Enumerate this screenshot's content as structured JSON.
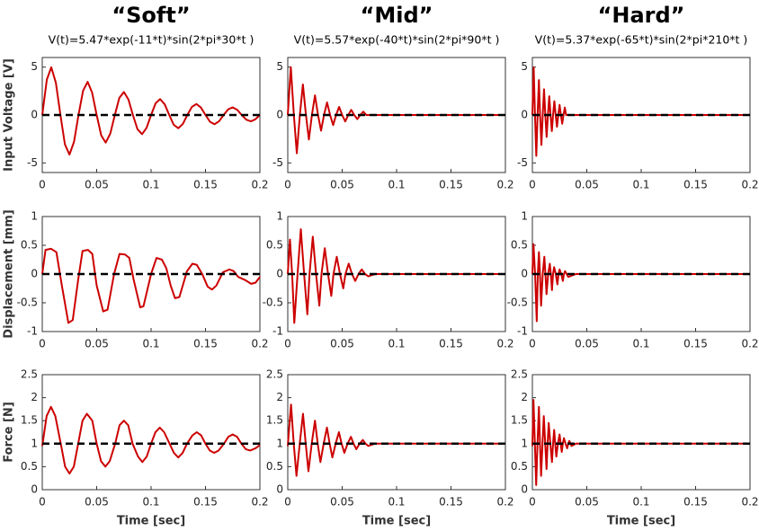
{
  "chart_data": [
    {
      "type": "line",
      "title": "“Soft”",
      "subtitle": "V(t)=5.47*exp(-11*t)*sin(2*pi*30*t )",
      "ylabel": "Input Voltage [V]",
      "x": [
        0,
        0.0042,
        0.0083,
        0.0125,
        0.0167,
        0.0208,
        0.025,
        0.0292,
        0.0333,
        0.0375,
        0.0417,
        0.0458,
        0.05,
        0.0542,
        0.0583,
        0.0625,
        0.0667,
        0.0708,
        0.075,
        0.0792,
        0.0833,
        0.0875,
        0.0917,
        0.0958,
        0.1,
        0.1042,
        0.1083,
        0.1125,
        0.1167,
        0.1208,
        0.125,
        0.1292,
        0.1333,
        0.1375,
        0.1417,
        0.1458,
        0.15,
        0.1542,
        0.1583,
        0.1625,
        0.1667,
        0.1708,
        0.175,
        0.1792,
        0.1833,
        0.1875,
        0.1917,
        0.1958,
        0.2
      ],
      "series": [
        {
          "color": "#cc0000",
          "values": [
            0,
            3.69,
            4.98,
            3.36,
            0,
            -3.06,
            -4.13,
            -2.79,
            0,
            2.54,
            3.46,
            2.34,
            0,
            -2.13,
            -2.88,
            -1.94,
            0,
            1.78,
            2.4,
            1.62,
            0,
            -1.48,
            -2,
            -1.35,
            0,
            1.23,
            1.66,
            1.12,
            0,
            -1.02,
            -1.38,
            -0.93,
            0,
            0.85,
            1.15,
            0.78,
            0,
            -0.71,
            -0.96,
            -0.65,
            0,
            0.59,
            0.8,
            0.54,
            0,
            -0.49,
            -0.66,
            -0.45,
            0
          ]
        }
      ],
      "reference": 0,
      "xlim": [
        0,
        0.2
      ],
      "xticks": [
        0,
        0.05,
        0.1,
        0.15,
        0.2
      ],
      "ylim": [
        -6,
        6
      ],
      "yticks": [
        -5,
        0,
        5
      ]
    },
    {
      "type": "line",
      "title": "“Mid”",
      "subtitle": "V(t)=5.57*exp(-40*t)*sin(2*pi*90*t )",
      "x": [
        0,
        0.0028,
        0.0056,
        0.0083,
        0.0111,
        0.0139,
        0.0167,
        0.0194,
        0.0222,
        0.025,
        0.0278,
        0.0306,
        0.0333,
        0.0361,
        0.0389,
        0.0417,
        0.0444,
        0.0472,
        0.05,
        0.0528,
        0.0556,
        0.0583,
        0.0611,
        0.0639,
        0.0667,
        0.0694,
        0.0722,
        0.2
      ],
      "series": [
        {
          "color": "#cc0000",
          "values": [
            0,
            4.99,
            0,
            -3.99,
            0,
            3.19,
            0,
            -2.56,
            0,
            2.05,
            0,
            -1.64,
            0,
            1.31,
            0,
            -1.05,
            0,
            0.84,
            0,
            -0.67,
            0,
            0.54,
            0,
            -0.43,
            0,
            0.35,
            0,
            0
          ]
        }
      ],
      "reference": 0,
      "xlim": [
        0,
        0.2
      ],
      "xticks": [
        0,
        0.05,
        0.1,
        0.15,
        0.2
      ],
      "ylim": [
        -6,
        6
      ],
      "yticks": [
        -5,
        0,
        5
      ]
    },
    {
      "type": "line",
      "title": "“Hard”",
      "subtitle": "V(t)=5.37*exp(-65*t)*sin(2*pi*210*t )",
      "x": [
        0,
        0.0012,
        0.0024,
        0.0036,
        0.0048,
        0.006,
        0.0071,
        0.0083,
        0.0095,
        0.0107,
        0.0119,
        0.0131,
        0.0143,
        0.0155,
        0.0167,
        0.0179,
        0.019,
        0.0202,
        0.0214,
        0.0226,
        0.0238,
        0.025,
        0.0262,
        0.0274,
        0.0286,
        0.0298,
        0.031,
        0.2
      ],
      "series": [
        {
          "color": "#cc0000",
          "values": [
            0,
            4.97,
            0,
            -4.26,
            0,
            3.65,
            0,
            -3.12,
            0,
            2.68,
            0,
            -2.29,
            0,
            1.96,
            0,
            -1.68,
            0,
            1.44,
            0,
            -1.23,
            0,
            1.06,
            0,
            -0.91,
            0,
            0.78,
            0,
            0
          ]
        }
      ],
      "reference": 0,
      "xlim": [
        0,
        0.2
      ],
      "xticks": [
        0,
        0.05,
        0.1,
        0.15,
        0.2
      ],
      "ylim": [
        -6,
        6
      ],
      "yticks": [
        -5,
        0,
        5
      ]
    },
    {
      "type": "line",
      "ylabel": "Displacement [mm]",
      "x": [
        0,
        0.003,
        0.008,
        0.013,
        0.018,
        0.024,
        0.028,
        0.033,
        0.037,
        0.042,
        0.046,
        0.05,
        0.056,
        0.06,
        0.066,
        0.071,
        0.076,
        0.08,
        0.084,
        0.09,
        0.093,
        0.1,
        0.105,
        0.11,
        0.114,
        0.118,
        0.122,
        0.126,
        0.133,
        0.138,
        0.142,
        0.147,
        0.152,
        0.156,
        0.16,
        0.166,
        0.172,
        0.176,
        0.18,
        0.186,
        0.192,
        0.196,
        0.2
      ],
      "series": [
        {
          "color": "#cc0000",
          "values": [
            0,
            0.42,
            0.44,
            0.38,
            -0.2,
            -0.85,
            -0.8,
            -0.1,
            0.4,
            0.42,
            0.35,
            -0.2,
            -0.65,
            -0.62,
            0,
            0.35,
            0.34,
            0.28,
            -0.1,
            -0.58,
            -0.56,
            0,
            0.28,
            0.25,
            0.1,
            -0.2,
            -0.42,
            -0.4,
            0.05,
            0.18,
            0.16,
            0,
            -0.22,
            -0.27,
            -0.2,
            0.03,
            0.08,
            0.05,
            -0.05,
            -0.1,
            -0.17,
            -0.15,
            -0.05
          ]
        }
      ],
      "reference": 0,
      "xlim": [
        0,
        0.2
      ],
      "xticks": [
        0,
        0.05,
        0.1,
        0.15,
        0.2
      ],
      "ylim": [
        -1,
        1
      ],
      "yticks": [
        -1,
        -0.5,
        0,
        0.5,
        1
      ]
    },
    {
      "type": "line",
      "x": [
        0,
        0.002,
        0.004,
        0.006,
        0.009,
        0.012,
        0.015,
        0.018,
        0.02,
        0.023,
        0.026,
        0.029,
        0.031,
        0.034,
        0.037,
        0.04,
        0.042,
        0.045,
        0.048,
        0.051,
        0.053,
        0.056,
        0.059,
        0.062,
        0.065,
        0.068,
        0.071,
        0.074,
        0.08,
        0.2
      ],
      "series": [
        {
          "color": "#cc0000",
          "values": [
            0,
            0.6,
            0,
            -0.85,
            0,
            0.78,
            0,
            -0.7,
            0,
            0.65,
            0,
            -0.55,
            0,
            0.45,
            0,
            -0.38,
            0,
            0.3,
            0,
            -0.25,
            0,
            0.18,
            0,
            -0.12,
            0,
            0.08,
            0,
            -0.04,
            0,
            0
          ]
        }
      ],
      "reference": 0,
      "xlim": [
        0,
        0.2
      ],
      "xticks": [
        0,
        0.05,
        0.1,
        0.15,
        0.2
      ],
      "ylim": [
        -1,
        1
      ],
      "yticks": [
        -1,
        -0.5,
        0,
        0.5,
        1
      ]
    },
    {
      "type": "line",
      "x": [
        0,
        0.001,
        0.0025,
        0.004,
        0.005,
        0.006,
        0.007,
        0.008,
        0.0095,
        0.011,
        0.012,
        0.013,
        0.0145,
        0.016,
        0.017,
        0.018,
        0.019,
        0.02,
        0.0215,
        0.023,
        0.024,
        0.025,
        0.0265,
        0.028,
        0.029,
        0.03,
        0.0315,
        0.033,
        0.04,
        0.2
      ],
      "series": [
        {
          "color": "#cc0000",
          "values": [
            0,
            0.52,
            0,
            -0.82,
            0,
            0.38,
            0,
            -0.55,
            0,
            0.3,
            0,
            -0.35,
            0,
            0.18,
            0,
            -0.28,
            0,
            0.12,
            0,
            -0.18,
            0,
            0.08,
            0,
            -0.12,
            0,
            0.05,
            0,
            -0.05,
            0,
            0
          ]
        }
      ],
      "reference": 0,
      "xlim": [
        0,
        0.2
      ],
      "xticks": [
        0,
        0.05,
        0.1,
        0.15,
        0.2
      ],
      "ylim": [
        -1,
        1
      ],
      "yticks": [
        -1,
        -0.5,
        0,
        0.5,
        1
      ]
    },
    {
      "type": "line",
      "ylabel": "Force [N]",
      "xlabel": "Time [sec]",
      "x": [
        0,
        0.004,
        0.008,
        0.012,
        0.017,
        0.021,
        0.025,
        0.029,
        0.033,
        0.037,
        0.041,
        0.046,
        0.05,
        0.054,
        0.058,
        0.062,
        0.067,
        0.071,
        0.075,
        0.079,
        0.083,
        0.088,
        0.092,
        0.096,
        0.1,
        0.104,
        0.108,
        0.112,
        0.117,
        0.121,
        0.125,
        0.129,
        0.133,
        0.138,
        0.142,
        0.146,
        0.15,
        0.154,
        0.158,
        0.162,
        0.167,
        0.171,
        0.175,
        0.179,
        0.183,
        0.187,
        0.191,
        0.196,
        0.2
      ],
      "series": [
        {
          "color": "#cc0000",
          "values": [
            0.95,
            1.6,
            1.8,
            1.6,
            1,
            0.5,
            0.35,
            0.5,
            1,
            1.5,
            1.65,
            1.5,
            1,
            0.62,
            0.5,
            0.62,
            1,
            1.4,
            1.5,
            1.4,
            1,
            0.72,
            0.6,
            0.72,
            1,
            1.25,
            1.35,
            1.25,
            1,
            0.8,
            0.7,
            0.8,
            1,
            1.18,
            1.25,
            1.18,
            1,
            0.85,
            0.8,
            0.85,
            1,
            1.15,
            1.2,
            1.15,
            1,
            0.88,
            0.85,
            0.9,
            0.97
          ]
        }
      ],
      "reference": 1,
      "xlim": [
        0,
        0.2
      ],
      "xticks": [
        0,
        0.05,
        0.1,
        0.15,
        0.2
      ],
      "ylim": [
        0,
        2.5
      ],
      "yticks": [
        0,
        0.5,
        1,
        1.5,
        2,
        2.5
      ]
    },
    {
      "type": "line",
      "xlabel": "Time [sec]",
      "x": [
        0,
        0.003,
        0.0055,
        0.008,
        0.011,
        0.014,
        0.0165,
        0.019,
        0.022,
        0.025,
        0.0275,
        0.03,
        0.033,
        0.036,
        0.0385,
        0.041,
        0.044,
        0.047,
        0.0495,
        0.052,
        0.055,
        0.058,
        0.0605,
        0.063,
        0.066,
        0.069,
        0.0715,
        0.074,
        0.08,
        0.2
      ],
      "series": [
        {
          "color": "#cc0000",
          "values": [
            0.95,
            1.85,
            1,
            0.3,
            1,
            1.65,
            1,
            0.4,
            1,
            1.5,
            1,
            0.6,
            1,
            1.35,
            1,
            0.7,
            1,
            1.25,
            1,
            0.8,
            1,
            1.15,
            1,
            0.88,
            1,
            1.08,
            1,
            0.95,
            1,
            1
          ]
        }
      ],
      "reference": 1,
      "xlim": [
        0,
        0.2
      ],
      "xticks": [
        0,
        0.05,
        0.1,
        0.15,
        0.2
      ],
      "ylim": [
        0,
        2.5
      ],
      "yticks": [
        0,
        0.5,
        1,
        1.5,
        2,
        2.5
      ]
    },
    {
      "type": "line",
      "xlabel": "Time [sec]",
      "x": [
        0,
        0.001,
        0.0023,
        0.0035,
        0.0047,
        0.006,
        0.007,
        0.008,
        0.0093,
        0.0105,
        0.0118,
        0.013,
        0.014,
        0.015,
        0.0165,
        0.018,
        0.019,
        0.02,
        0.021,
        0.022,
        0.0235,
        0.025,
        0.026,
        0.027,
        0.028,
        0.029,
        0.0305,
        0.032,
        0.033,
        0.034,
        0.035,
        0.036,
        0.04,
        0.2
      ],
      "series": [
        {
          "color": "#cc0000",
          "values": [
            0.95,
            1.95,
            1,
            0.1,
            1,
            1.8,
            1,
            0.3,
            1,
            1.6,
            1,
            0.45,
            1,
            1.45,
            1,
            0.6,
            1,
            1.3,
            1,
            0.72,
            1,
            1.2,
            1,
            0.82,
            1,
            1.12,
            1,
            0.9,
            1,
            1.06,
            1,
            0.95,
            1,
            1
          ]
        }
      ],
      "reference": 1,
      "xlim": [
        0,
        0.2
      ],
      "xticks": [
        0,
        0.05,
        0.1,
        0.15,
        0.2
      ],
      "ylim": [
        0,
        2.5
      ],
      "yticks": [
        0,
        0.5,
        1,
        1.5,
        2,
        2.5
      ]
    }
  ]
}
